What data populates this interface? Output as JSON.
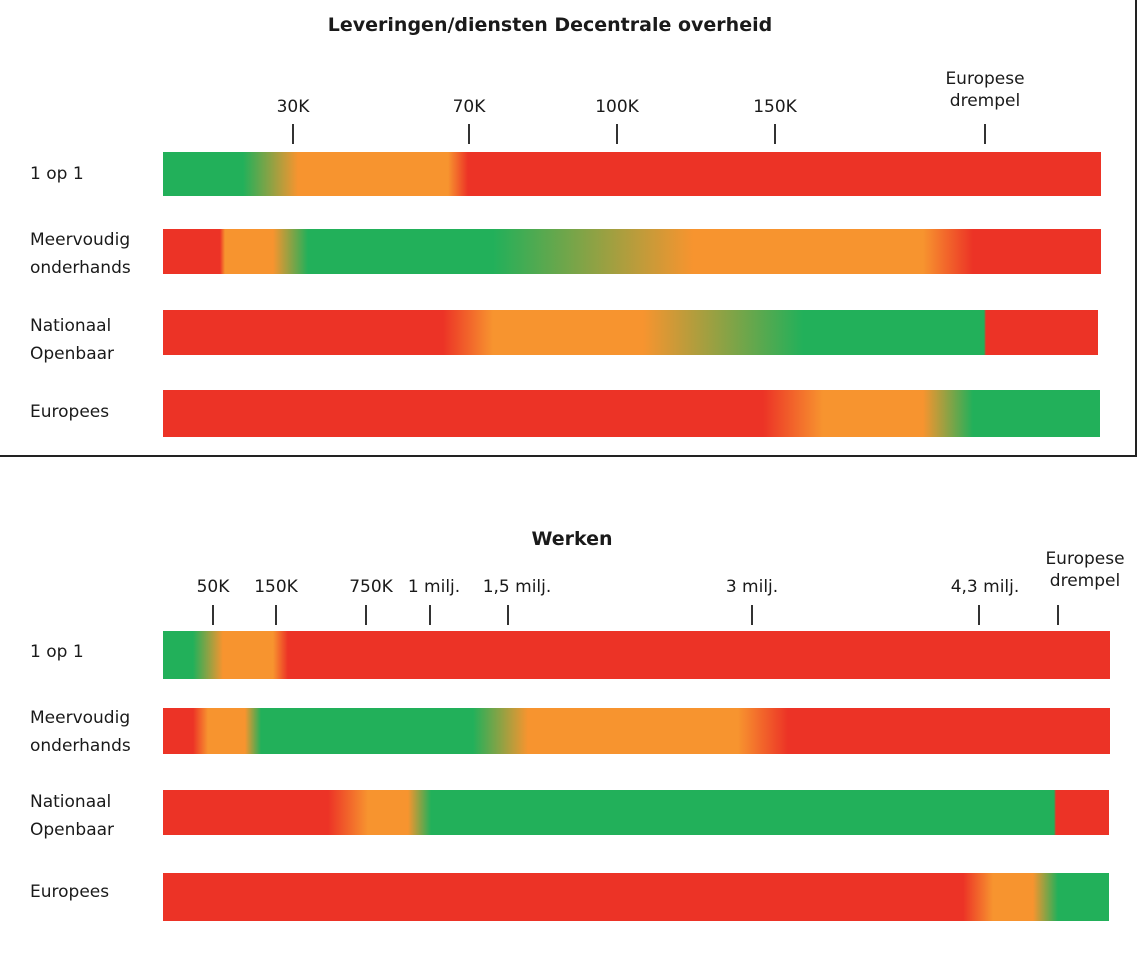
{
  "colors": {
    "green": "#22b05a",
    "orange": "#f7942f",
    "red": "#ec3326"
  },
  "panel1": {
    "title": "Leveringen/diensten Decentrale overheid",
    "ticks": [
      "30K",
      "70K",
      "100K",
      "150K",
      "Europese drempel"
    ],
    "rows": [
      {
        "label": "1 op 1"
      },
      {
        "label": "Meervoudig onderhands"
      },
      {
        "label": "Nationaal Openbaar"
      },
      {
        "label": "Europees"
      }
    ]
  },
  "panel2": {
    "title": "Werken",
    "ticks": [
      "50K",
      "150K",
      "750K",
      "1 milj.",
      "1,5 milj.",
      "3 milj.",
      "4,3 milj.",
      "Europese drempel"
    ],
    "rows": [
      {
        "label": "1 op 1"
      },
      {
        "label": "Meervoudig onderhands"
      },
      {
        "label": "Nationaal Openbaar"
      },
      {
        "label": "Europees"
      }
    ]
  }
}
